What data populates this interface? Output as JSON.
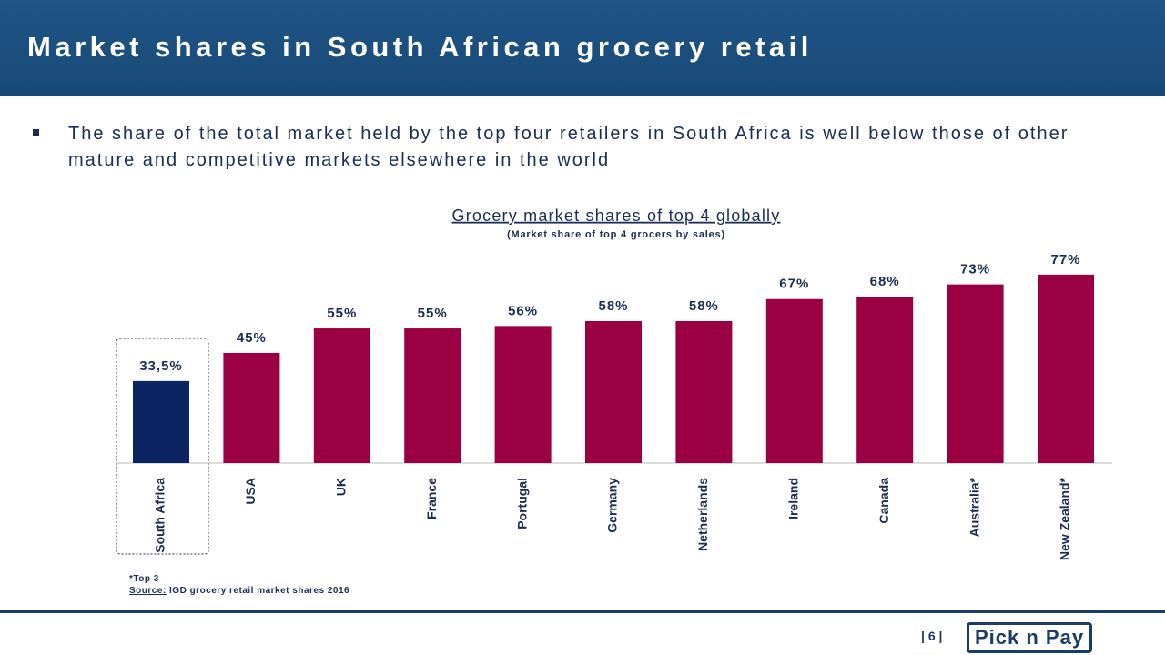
{
  "header": {
    "title": "Market shares in South African grocery retail"
  },
  "bullet": "The share of the total market held by the top four retailers in South Africa is well below those of other mature and competitive markets elsewhere in the world",
  "chart_data": {
    "type": "bar",
    "title": "Grocery market shares of top 4 globally",
    "subtitle": "(Market share of top 4 grocers by sales)",
    "categories": [
      "South Africa",
      "USA",
      "UK",
      "France",
      "Portugal",
      "Germany",
      "Netherlands",
      "Ireland",
      "Canada",
      "Australia*",
      "New Zealand*"
    ],
    "values": [
      33.5,
      45,
      55,
      55,
      56,
      58,
      58,
      67,
      68,
      73,
      77
    ],
    "value_labels": [
      "33,5%",
      "45%",
      "55%",
      "55%",
      "56%",
      "58%",
      "58%",
      "67%",
      "68%",
      "73%",
      "77%"
    ],
    "colors": [
      "#0c2461",
      "#9b0042",
      "#9b0042",
      "#9b0042",
      "#9b0042",
      "#9b0042",
      "#9b0042",
      "#9b0042",
      "#9b0042",
      "#9b0042",
      "#9b0042"
    ]
  },
  "footnote": "*Top 3",
  "source_label": "Source:",
  "source": "IGD grocery retail market shares 2016",
  "page_number": "6",
  "logo": "Pick n Pay"
}
